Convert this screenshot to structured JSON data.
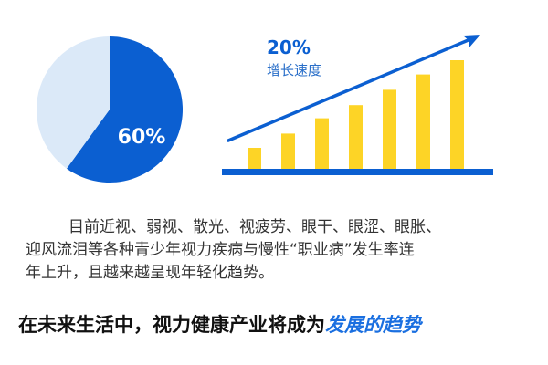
{
  "chart_data": [
    {
      "type": "pie",
      "values": [
        60,
        40
      ],
      "labels": [
        "60%",
        ""
      ],
      "colors": [
        "#0b5fd1",
        "#dbe9f8"
      ]
    },
    {
      "type": "bar",
      "categories": [
        "",
        "",
        "",
        "",
        "",
        "",
        ""
      ],
      "values": [
        20,
        33,
        47,
        59,
        73,
        87,
        100
      ],
      "ylim": [
        0,
        100
      ],
      "bar_color": "#fdd426",
      "axis_color": "#0b5fd1",
      "trend_arrow": true,
      "annotation": {
        "value": "20%",
        "label": "增长速度"
      }
    }
  ],
  "text": {
    "paragraph_lines": [
      "目前近视、弱视、散光、视疲劳、眼干、眼涩、眼胀、",
      "迎风流泪等各种青少年视力疾病与慢性“职业病”发生率连",
      "年上升，且越来越呈现年轻化趋势。"
    ],
    "headline_main": "在未来生活中，视力健康产业将成为",
    "headline_highlight": "发展的趋势"
  },
  "colors": {
    "primary_blue": "#0b5fd1",
    "highlight_blue": "#1a6fe0",
    "yellow": "#fdd426"
  }
}
